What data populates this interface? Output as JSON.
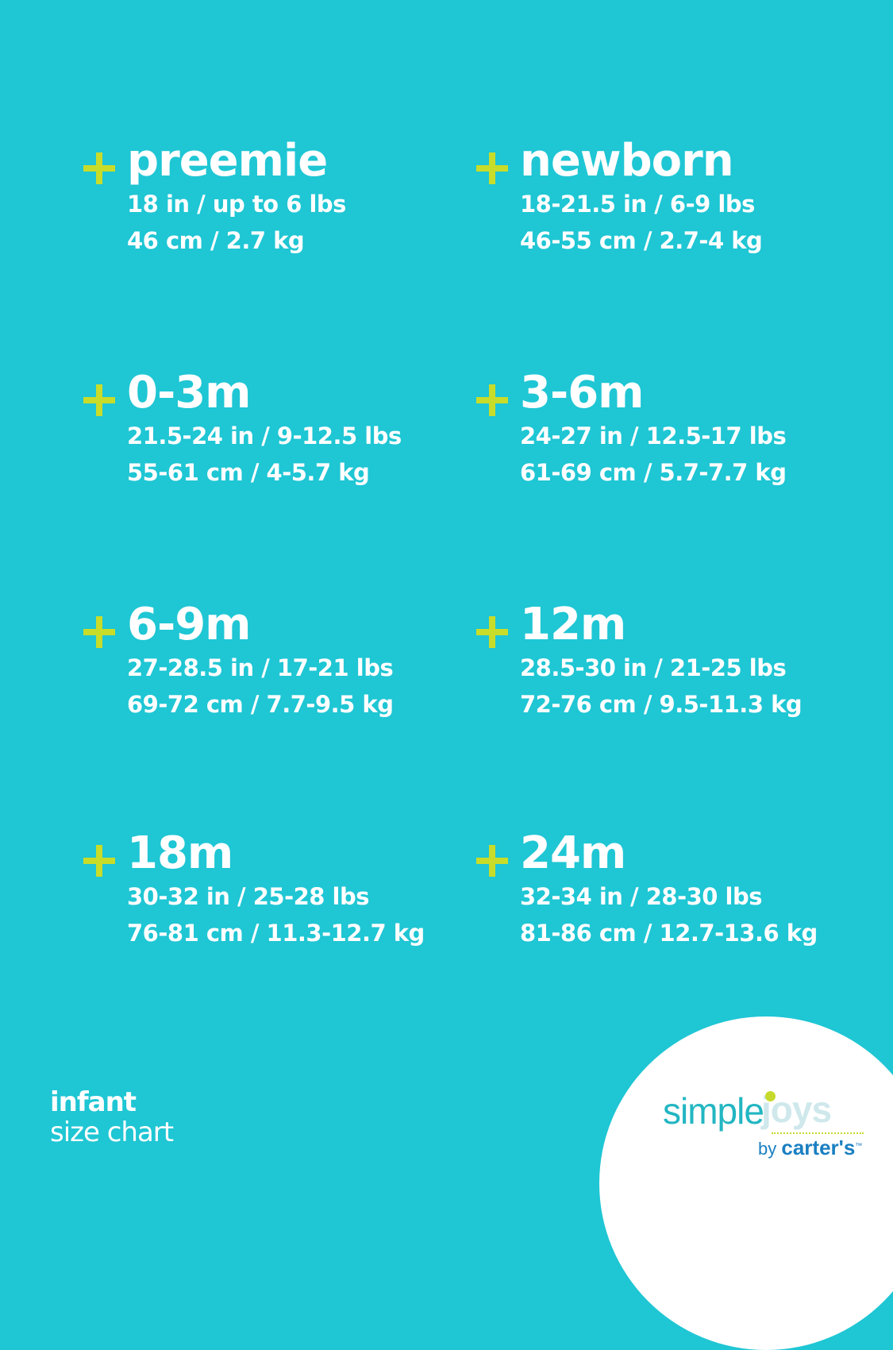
{
  "colors": {
    "background": "#1fc6d4",
    "plus": "#c8dc2a",
    "logo_teal": "#22b6c2",
    "logo_blue": "#1a7fc1"
  },
  "sizes": [
    {
      "name": "preemie",
      "line1": "18 in / up to 6 lbs",
      "line2": "46 cm / 2.7 kg"
    },
    {
      "name": "newborn",
      "line1": "18-21.5 in / 6-9 lbs",
      "line2": "46-55 cm / 2.7-4 kg"
    },
    {
      "name": "0-3m",
      "line1": "21.5-24 in / 9-12.5 lbs",
      "line2": "55-61 cm / 4-5.7 kg"
    },
    {
      "name": "3-6m",
      "line1": "24-27 in / 12.5-17 lbs",
      "line2": "61-69 cm / 5.7-7.7 kg"
    },
    {
      "name": "6-9m",
      "line1": "27-28.5 in / 17-21 lbs",
      "line2": "69-72 cm / 7.7-9.5 kg"
    },
    {
      "name": "12m",
      "line1": "28.5-30 in / 21-25 lbs",
      "line2": "72-76 cm / 9.5-11.3 kg"
    },
    {
      "name": "18m",
      "line1": "30-32 in / 25-28 lbs",
      "line2": "76-81 cm / 11.3-12.7 kg"
    },
    {
      "name": "24m",
      "line1": "32-34 in / 28-30 lbs",
      "line2": "81-86 cm / 12.7-13.6 kg"
    }
  ],
  "footer": {
    "line1": "infant",
    "line2": "size chart"
  },
  "logo": {
    "simple": "simple",
    "joys": "joys",
    "by": "by",
    "brand": "carter's",
    "tm": "™"
  }
}
